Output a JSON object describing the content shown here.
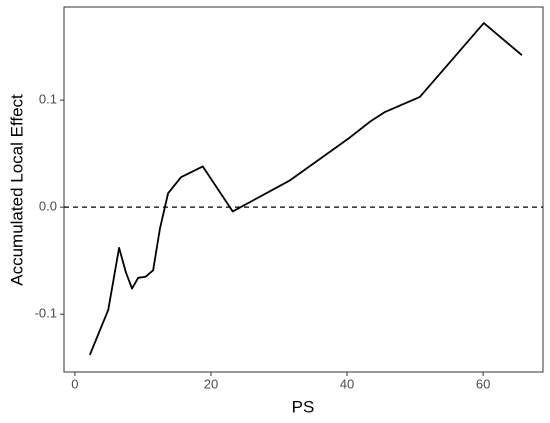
{
  "chart_data": {
    "type": "line",
    "xlabel": "PS",
    "ylabel": "Accumulated Local Effect",
    "x": [
      2.2,
      4.9,
      6.5,
      7.5,
      8.4,
      9.3,
      10.4,
      11.5,
      12.5,
      13.7,
      15.6,
      18.8,
      23.2,
      31.6,
      40.4,
      43.4,
      45.6,
      50.7,
      60.1,
      65.7
    ],
    "series": [
      {
        "color": "#000000",
        "values": [
          -0.138,
          -0.096,
          -0.038,
          -0.061,
          -0.076,
          -0.066,
          -0.065,
          -0.059,
          -0.02,
          0.013,
          0.028,
          0.038,
          -0.004,
          0.025,
          0.065,
          0.08,
          0.089,
          0.103,
          0.172,
          0.142
        ]
      }
    ],
    "xlim": [
      -1.6,
      68.8
    ],
    "xticks": [
      0,
      20,
      40,
      60
    ],
    "ylim": [
      -0.154,
      0.187
    ],
    "yticks": [
      -0.1,
      {
        "value": 0,
        "label": "0.0"
      },
      0.1
    ],
    "hline": 0,
    "grid": false
  }
}
